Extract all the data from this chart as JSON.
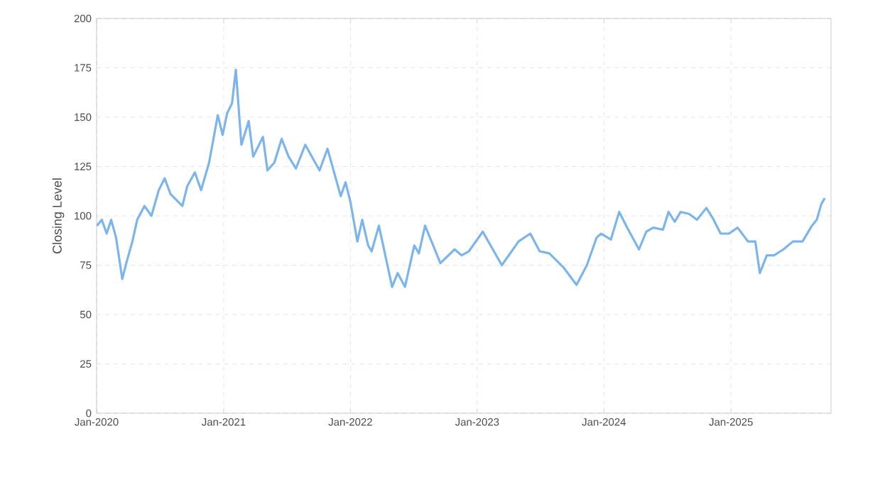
{
  "chart_data": {
    "type": "line",
    "ylabel": "Closing Level",
    "color": "#7cb5ec",
    "grid": true,
    "x": [
      "2020-01-02",
      "2020-01-16",
      "2020-01-30",
      "2020-02-12",
      "2020-02-26",
      "2020-03-15",
      "2020-03-28",
      "2020-04-13",
      "2020-04-27",
      "2020-05-18",
      "2020-06-07",
      "2020-06-28",
      "2020-07-15",
      "2020-08-01",
      "2020-09-04",
      "2020-09-18",
      "2020-10-10",
      "2020-10-28",
      "2020-11-20",
      "2020-12-15",
      "2020-12-29",
      "2021-01-11",
      "2021-01-25",
      "2021-02-05",
      "2021-02-21",
      "2021-03-14",
      "2021-03-27",
      "2021-04-24",
      "2021-05-07",
      "2021-05-27",
      "2021-06-17",
      "2021-07-07",
      "2021-07-28",
      "2021-08-24",
      "2021-10-04",
      "2021-10-27",
      "2021-12-04",
      "2021-12-18",
      "2022-01-01",
      "2022-01-21",
      "2022-02-04",
      "2022-02-21",
      "2022-03-03",
      "2022-03-24",
      "2022-05-01",
      "2022-05-17",
      "2022-06-07",
      "2022-07-04",
      "2022-07-17",
      "2022-08-04",
      "2022-09-17",
      "2022-10-28",
      "2022-11-17",
      "2022-12-08",
      "2023-01-17",
      "2023-03-13",
      "2023-04-30",
      "2023-06-03",
      "2023-06-30",
      "2023-07-28",
      "2023-09-06",
      "2023-10-14",
      "2023-11-13",
      "2023-12-11",
      "2023-12-24",
      "2024-01-21",
      "2024-02-14",
      "2024-03-08",
      "2024-04-11",
      "2024-05-02",
      "2024-05-22",
      "2024-06-19",
      "2024-07-05",
      "2024-07-23",
      "2024-08-09",
      "2024-09-02",
      "2024-09-25",
      "2024-10-22",
      "2024-11-09",
      "2024-12-02",
      "2024-12-26",
      "2025-01-20",
      "2025-02-19",
      "2025-03-12",
      "2025-03-25",
      "2025-04-14",
      "2025-05-05",
      "2025-06-01",
      "2025-06-28",
      "2025-07-26",
      "2025-08-22",
      "2025-09-05",
      "2025-09-18",
      "2025-09-28"
    ],
    "values": [
      95,
      98,
      91,
      98,
      89,
      68,
      77,
      87,
      98,
      105,
      100,
      113,
      119,
      111,
      105,
      115,
      122,
      113,
      127,
      151,
      141,
      152,
      157,
      174,
      136,
      148,
      130,
      140,
      123,
      127,
      139,
      130,
      124,
      136,
      123,
      134,
      110,
      117,
      107,
      87,
      98,
      85,
      82,
      95,
      64,
      71,
      64,
      85,
      81,
      95,
      76,
      83,
      80,
      82,
      92,
      75,
      87,
      91,
      82,
      81,
      74,
      65,
      75,
      89,
      91,
      88,
      102,
      94,
      83,
      92,
      94,
      93,
      102,
      97,
      102,
      101,
      98,
      104,
      99,
      91,
      91,
      94,
      87,
      87,
      71,
      80,
      80,
      83,
      87,
      87,
      95,
      98,
      106,
      109
    ],
    "xlim": [
      "2020-01-01",
      "2025-10-16"
    ],
    "xticks": [
      {
        "value": "2020-01-01",
        "label": "Jan-2020"
      },
      {
        "value": "2021-01-01",
        "label": "Jan-2021"
      },
      {
        "value": "2022-01-01",
        "label": "Jan-2022"
      },
      {
        "value": "2023-01-01",
        "label": "Jan-2023"
      },
      {
        "value": "2024-01-01",
        "label": "Jan-2024"
      },
      {
        "value": "2025-01-01",
        "label": "Jan-2025"
      }
    ],
    "ylim": [
      0,
      200
    ],
    "yticks": [
      0,
      25,
      50,
      75,
      100,
      125,
      150,
      175,
      200
    ]
  }
}
